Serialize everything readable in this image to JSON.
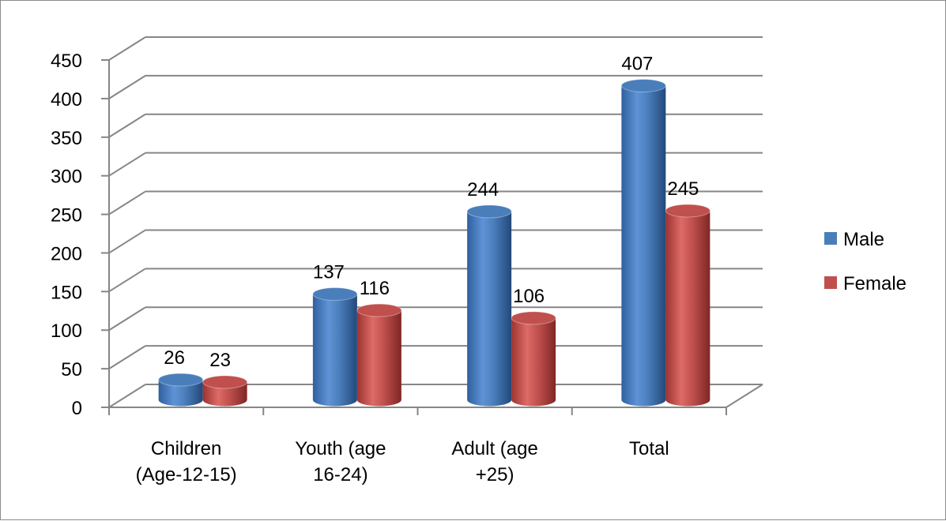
{
  "chart_data": {
    "type": "bar",
    "categories": [
      [
        "Children",
        "(Age-12-15)"
      ],
      [
        "Youth (age",
        "16-24)"
      ],
      [
        "Adult  (age",
        "+25)"
      ],
      [
        "Total"
      ]
    ],
    "series": [
      {
        "name": "Male",
        "values": [
          26,
          137,
          244,
          407
        ],
        "color": "#4a7ebb"
      },
      {
        "name": "Female",
        "values": [
          23,
          116,
          106,
          245
        ],
        "color": "#c0504d"
      }
    ],
    "ylim": [
      0,
      450
    ],
    "yticks": [
      "0",
      "50",
      "100",
      "150",
      "200",
      "250",
      "300",
      "350",
      "400",
      "450"
    ],
    "grid": true,
    "legend_position": "right",
    "style": "3d-cylinder"
  }
}
